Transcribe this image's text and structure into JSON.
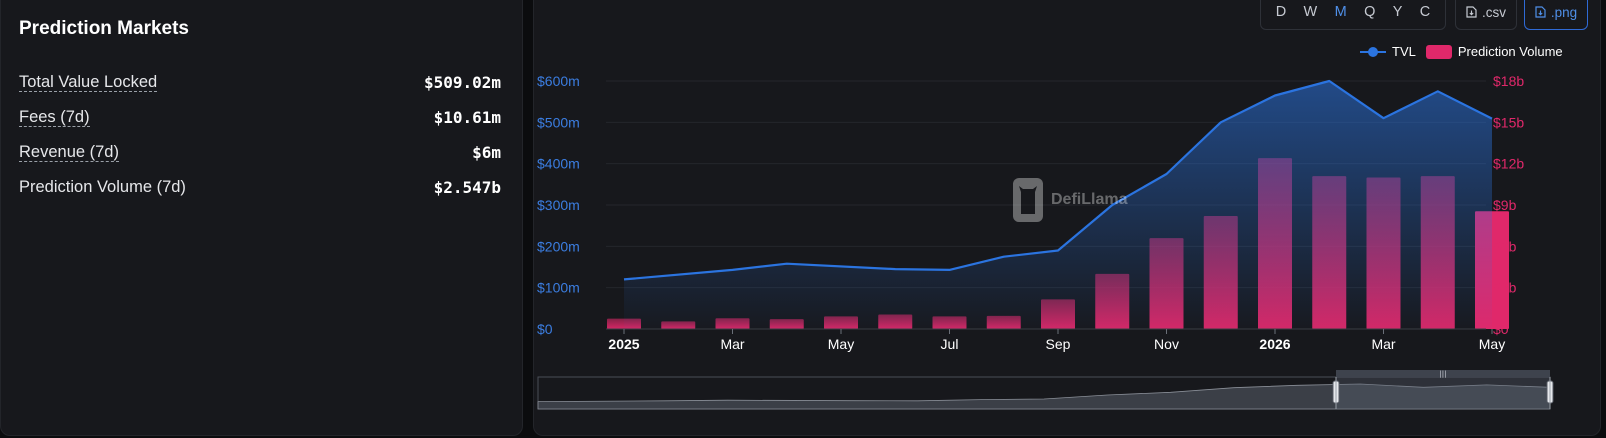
{
  "panel": {
    "title": "Prediction Markets",
    "stats": [
      {
        "label": "Total Value Locked",
        "value": "$509.02m"
      },
      {
        "label": "Fees (7d)",
        "value": "$10.61m"
      },
      {
        "label": "Revenue (7d)",
        "value": "$6m"
      },
      {
        "label": "Prediction Volume (7d)",
        "value": "$2.547b"
      }
    ]
  },
  "toolbar": {
    "periods": [
      "D",
      "W",
      "M",
      "Q",
      "Y",
      "C"
    ],
    "active_period": "M",
    "csv_label": ".csv",
    "png_label": ".png"
  },
  "legend": {
    "tvl": "TVL",
    "volume": "Prediction Volume"
  },
  "watermark": "DefiLlama",
  "colors": {
    "tvl": "#2b74e0",
    "volume": "#e0286a",
    "left_axis": "#3b7de0",
    "right_axis": "#e0286a"
  },
  "chart_data": {
    "type": "bar",
    "x_labels": [
      "2025",
      "Mar",
      "May",
      "Jul",
      "Sep",
      "Nov",
      "2026",
      "Mar",
      "May"
    ],
    "x_labels_bold": [
      "2025",
      "2026"
    ],
    "left_axis": {
      "ticks": [
        "$0",
        "$100m",
        "$200m",
        "$300m",
        "$400m",
        "$500m",
        "$600m"
      ],
      "ylim": [
        0,
        600
      ],
      "unit": "m"
    },
    "right_axis": {
      "ticks": [
        "$0",
        "$3b",
        "$6b",
        "$9b",
        "$12b",
        "$15b",
        "$18b"
      ],
      "ylim": [
        0,
        18
      ],
      "unit": "b"
    },
    "grid": true,
    "legend_position": "top-right",
    "series": [
      {
        "name": "TVL",
        "type": "area-line",
        "axis": "left",
        "points": [
          {
            "x": "2025-01",
            "y": 120
          },
          {
            "x": "2025-03",
            "y": 143
          },
          {
            "x": "2025-04",
            "y": 158
          },
          {
            "x": "2025-06",
            "y": 145
          },
          {
            "x": "2025-07",
            "y": 143
          },
          {
            "x": "2025-08",
            "y": 175
          },
          {
            "x": "2025-09",
            "y": 190
          },
          {
            "x": "2025-10",
            "y": 300
          },
          {
            "x": "2025-11",
            "y": 375
          },
          {
            "x": "2025-12",
            "y": 500
          },
          {
            "x": "2026-01",
            "y": 565
          },
          {
            "x": "2026-02",
            "y": 600
          },
          {
            "x": "2026-03",
            "y": 510
          },
          {
            "x": "2026-04",
            "y": 575
          },
          {
            "x": "2026-05",
            "y": 509
          }
        ]
      },
      {
        "name": "Prediction Volume",
        "type": "bar",
        "axis": "right",
        "points": [
          {
            "x": "2025-01",
            "y": 0.75
          },
          {
            "x": "2025-02",
            "y": 0.55
          },
          {
            "x": "2025-03",
            "y": 0.78
          },
          {
            "x": "2025-04",
            "y": 0.72
          },
          {
            "x": "2025-05",
            "y": 0.92
          },
          {
            "x": "2025-06",
            "y": 1.05
          },
          {
            "x": "2025-07",
            "y": 0.92
          },
          {
            "x": "2025-08",
            "y": 0.95
          },
          {
            "x": "2025-09",
            "y": 2.15
          },
          {
            "x": "2025-10",
            "y": 4.0
          },
          {
            "x": "2025-11",
            "y": 6.6
          },
          {
            "x": "2025-12",
            "y": 8.2
          },
          {
            "x": "2026-01",
            "y": 12.4
          },
          {
            "x": "2026-02",
            "y": 11.1
          },
          {
            "x": "2026-03",
            "y": 11.0
          },
          {
            "x": "2026-04",
            "y": 11.1
          },
          {
            "x": "2026-05",
            "y": 8.55
          }
        ]
      }
    ]
  }
}
